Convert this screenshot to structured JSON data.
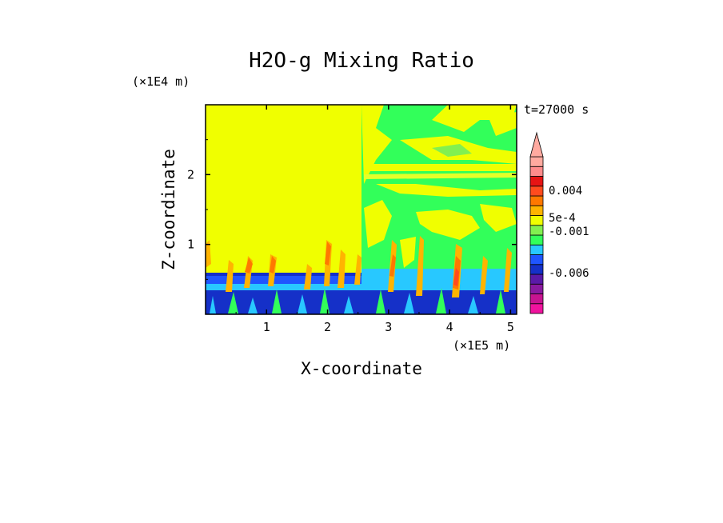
{
  "chart_data": {
    "type": "heatmap",
    "title": "H2O-g Mixing Ratio",
    "xlabel": "X-coordinate",
    "ylabel": "Z-coordinate",
    "x_multiplier": "(×1E5 m)",
    "y_multiplier": "(×1E4 m)",
    "time_label": "t=27000 s",
    "xlim": [
      0,
      5.1
    ],
    "ylim": [
      0,
      3.0
    ],
    "x_ticks": [
      1,
      2,
      3,
      4,
      5
    ],
    "y_ticks": [
      1,
      2
    ],
    "colorbar": {
      "labels": [
        {
          "text": "0.004",
          "value": 0.004
        },
        {
          "text": "5e-4",
          "value": 0.0005
        },
        {
          "text": "-0.001",
          "value": -0.001
        },
        {
          "text": "-0.006",
          "value": -0.006
        }
      ],
      "colors": [
        "#f0139e",
        "#c81491",
        "#8a1aa0",
        "#5a1aa8",
        "#1530c8",
        "#1f55ff",
        "#28c8ff",
        "#32ff5a",
        "#82f050",
        "#f0ff00",
        "#ffb400",
        "#ff7800",
        "#ff4b1e",
        "#e61414",
        "#ff8c8c",
        "#ffaaa0"
      ]
    }
  }
}
